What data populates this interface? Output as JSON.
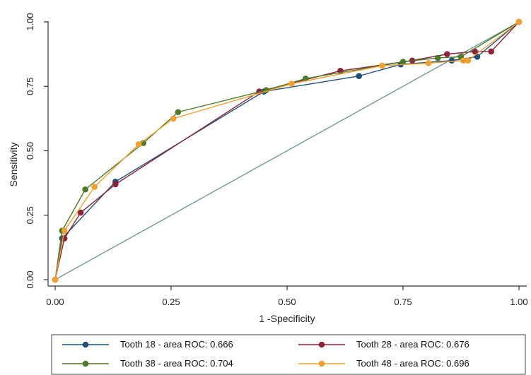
{
  "chart_data": {
    "type": "line",
    "xlabel": "1 -Specificity",
    "ylabel": "Sensitivity",
    "xlim": [
      0,
      1
    ],
    "ylim": [
      0,
      1
    ],
    "xticks": [
      "0.00",
      "0.25",
      "0.50",
      "0.75",
      "1.00"
    ],
    "yticks": [
      "0.00",
      "0.25",
      "0.50",
      "0.75",
      "1.00"
    ],
    "grid": false,
    "legend_position": "bottom",
    "reference_line": {
      "x": [
        0,
        1
      ],
      "y": [
        0,
        1
      ],
      "color": "#5f8a8b"
    },
    "series": [
      {
        "name": "Tooth 18 - area ROC: 0.666",
        "color": "#1f4e79",
        "x": [
          0,
          0.015,
          0.13,
          0.45,
          0.655,
          0.745,
          0.855,
          0.91,
          1
        ],
        "y": [
          0,
          0.16,
          0.38,
          0.73,
          0.79,
          0.835,
          0.85,
          0.865,
          1
        ]
      },
      {
        "name": "Tooth 28 - area ROC: 0.676",
        "color": "#8b2339",
        "x": [
          0,
          0.02,
          0.055,
          0.13,
          0.44,
          0.615,
          0.77,
          0.845,
          0.905,
          0.94,
          1
        ],
        "y": [
          0,
          0.16,
          0.26,
          0.37,
          0.73,
          0.81,
          0.85,
          0.875,
          0.885,
          0.885,
          1
        ]
      },
      {
        "name": "Tooth 38 - area ROC: 0.704",
        "color": "#4e7a2a",
        "x": [
          0,
          0.015,
          0.065,
          0.19,
          0.265,
          0.455,
          0.54,
          0.75,
          0.825,
          0.875,
          1
        ],
        "y": [
          0,
          0.19,
          0.35,
          0.53,
          0.65,
          0.735,
          0.78,
          0.845,
          0.86,
          0.865,
          1
        ]
      },
      {
        "name": "Tooth 48 - area ROC: 0.696",
        "color": "#f0a030",
        "x": [
          0,
          0.02,
          0.085,
          0.18,
          0.255,
          0.51,
          0.705,
          0.805,
          0.88,
          0.89,
          1
        ],
        "y": [
          0,
          0.19,
          0.36,
          0.525,
          0.625,
          0.76,
          0.83,
          0.84,
          0.85,
          0.85,
          1
        ]
      }
    ]
  }
}
